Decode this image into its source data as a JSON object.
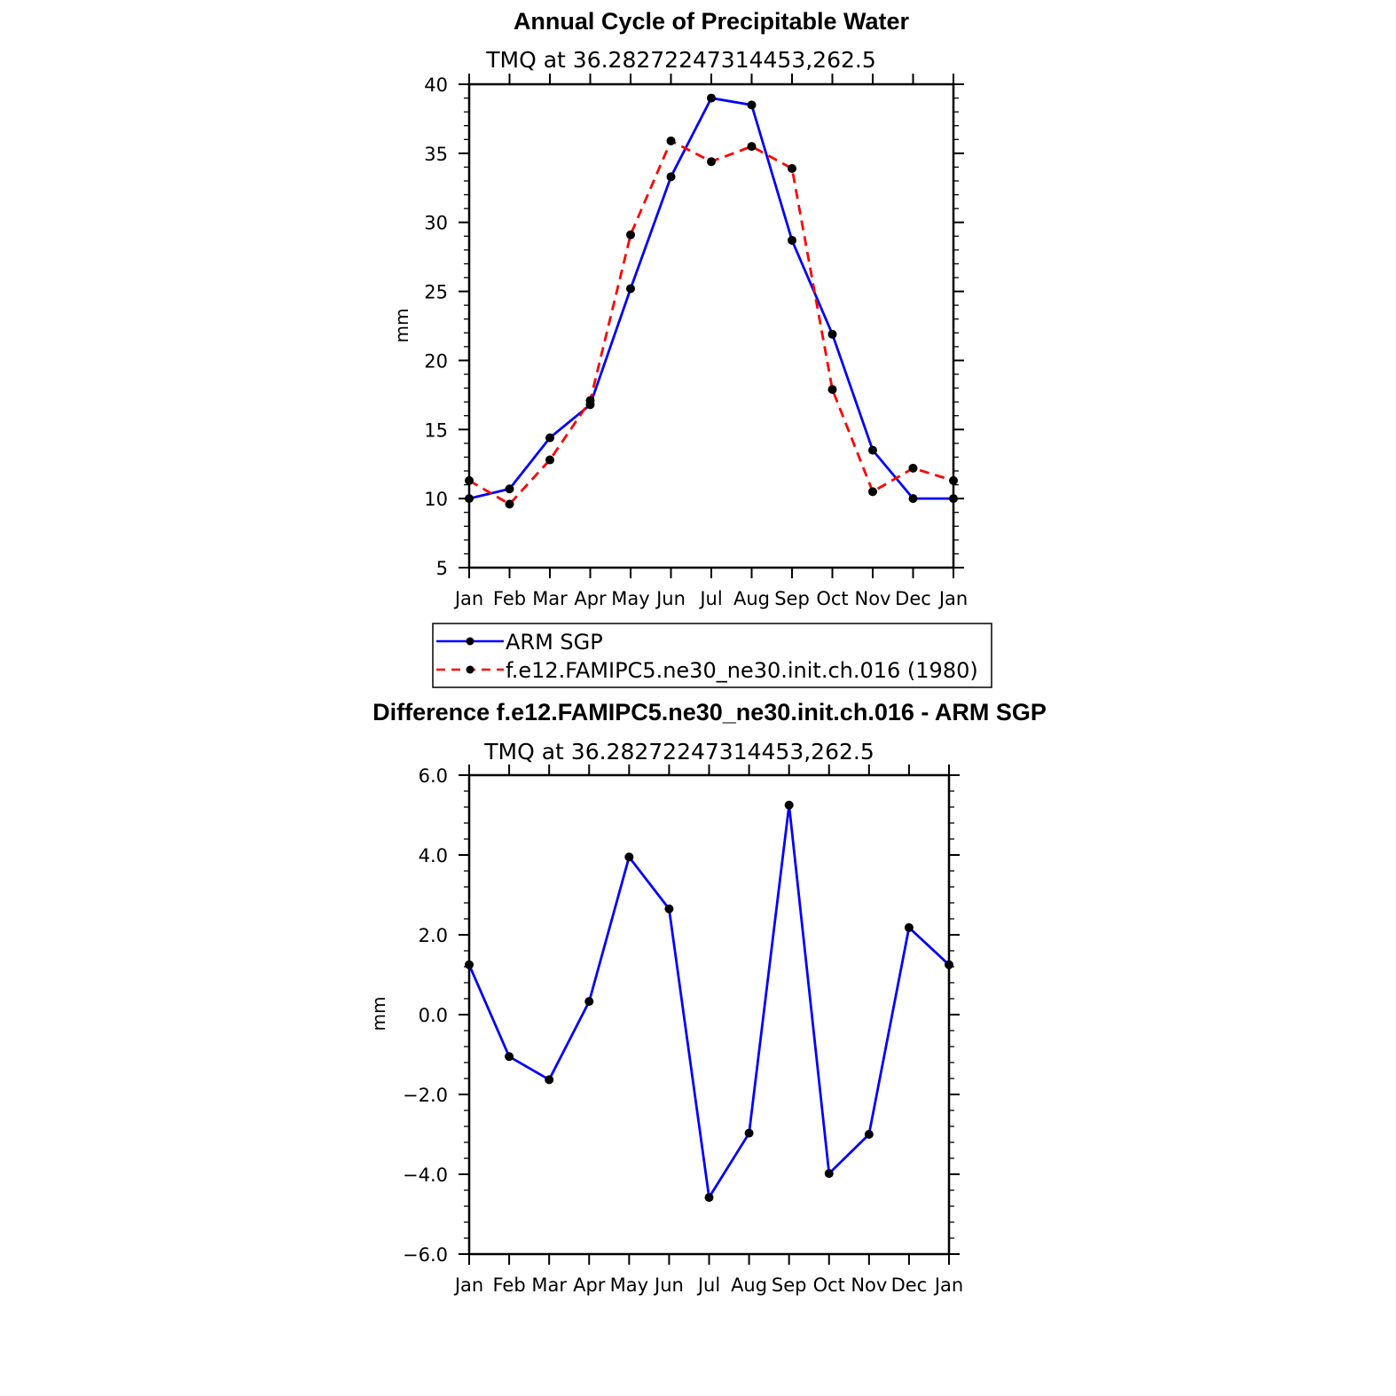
{
  "chart_data": [
    {
      "type": "line",
      "title": "Annual Cycle of Precipitable Water",
      "subtitle": "TMQ  at  36.28272247314453,262.5",
      "xlabel": "",
      "ylabel": "mm",
      "categories": [
        "Jan",
        "Feb",
        "Mar",
        "Apr",
        "May",
        "Jun",
        "Jul",
        "Aug",
        "Sep",
        "Oct",
        "Nov",
        "Dec",
        "Jan"
      ],
      "ylim": [
        5,
        40
      ],
      "yticks": [
        5,
        10,
        15,
        20,
        25,
        30,
        35,
        40
      ],
      "ytick_labels": [
        "5",
        "10",
        "15",
        "20",
        "25",
        "30",
        "35",
        "40"
      ],
      "series": [
        {
          "name": "ARM  SGP",
          "color": "#0000ff",
          "dash": "solid",
          "values": [
            10.0,
            10.7,
            14.4,
            16.8,
            25.2,
            33.3,
            39.0,
            38.5,
            28.7,
            21.9,
            13.5,
            10.0,
            10.0
          ]
        },
        {
          "name": "f.e12.FAMIPC5.ne30_ne30.init.ch.016 (1980)",
          "color": "#ff0000",
          "dash": "dashed",
          "values": [
            11.3,
            9.6,
            12.8,
            17.1,
            29.1,
            35.9,
            34.4,
            35.5,
            33.9,
            17.9,
            10.5,
            12.2,
            11.3
          ]
        }
      ],
      "legend": "below"
    },
    {
      "type": "line",
      "title": "Difference f.e12.FAMIPC5.ne30_ne30.init.ch.016 - ARM SGP",
      "subtitle": "TMQ  at  36.28272247314453,262.5",
      "xlabel": "",
      "ylabel": "mm",
      "categories": [
        "Jan",
        "Feb",
        "Mar",
        "Apr",
        "May",
        "Jun",
        "Jul",
        "Aug",
        "Sep",
        "Oct",
        "Nov",
        "Dec",
        "Jan"
      ],
      "ylim": [
        -6,
        6
      ],
      "yticks": [
        -6,
        -4,
        -2,
        0,
        2,
        4,
        6
      ],
      "ytick_labels": [
        "−6.0",
        "−4.0",
        "−2.0",
        "0.0",
        "2.0",
        "4.0",
        "6.0"
      ],
      "series": [
        {
          "name": "Difference",
          "color": "#0000ff",
          "dash": "solid",
          "values": [
            1.25,
            -1.05,
            -1.63,
            0.33,
            3.95,
            2.65,
            -4.58,
            -2.97,
            5.25,
            -3.98,
            -3.0,
            2.18,
            1.25
          ]
        }
      ]
    }
  ]
}
